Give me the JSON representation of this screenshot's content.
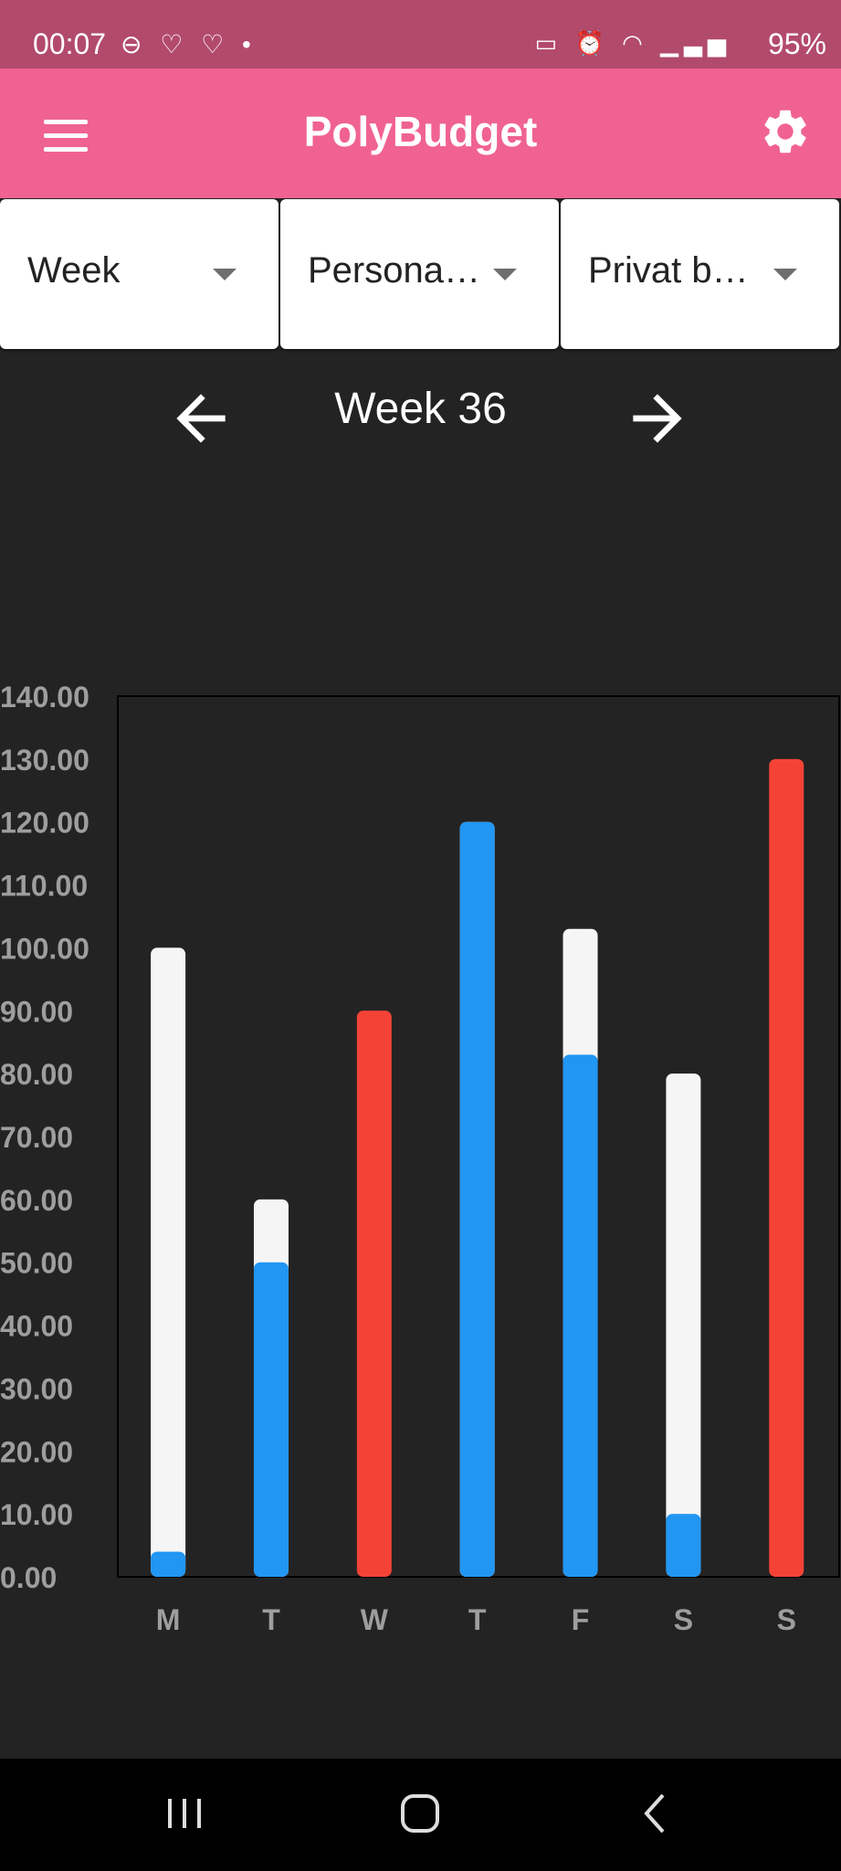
{
  "status_bar": {
    "time": "00:07",
    "left_icons": [
      "do-not-disturb-icon",
      "heart-icon",
      "heart-icon",
      "dot-icon"
    ],
    "right_icons": [
      "sleep-icon",
      "alarm-icon",
      "wifi-icon",
      "signal-icon",
      "signal-r-icon"
    ],
    "battery": "95%"
  },
  "app_bar": {
    "title": "PolyBudget",
    "menu_icon": "menu-icon",
    "settings_icon": "gear-icon"
  },
  "filters": [
    {
      "label": "Week"
    },
    {
      "label": "Persona…"
    },
    {
      "label": "Privat b…"
    }
  ],
  "week_nav": {
    "label": "Week 36",
    "prev_icon": "arrow-left-icon",
    "next_icon": "arrow-right-icon"
  },
  "colors": {
    "app_bar": "#f06292",
    "status_bar": "#b24a6c",
    "background": "#232323",
    "bar_blue": "#2196f3",
    "bar_red": "#f44336",
    "bar_total": "#f5f5f5",
    "axis_text": "#9e9e9e"
  },
  "chart_data": {
    "type": "bar",
    "categories": [
      "M",
      "T",
      "W",
      "T",
      "F",
      "S",
      "S"
    ],
    "totals": [
      100,
      60,
      90,
      120,
      103,
      80,
      130
    ],
    "spent": [
      4,
      50,
      90,
      120,
      83,
      10,
      130
    ],
    "over_budget": [
      false,
      false,
      true,
      false,
      false,
      false,
      true
    ],
    "ylim": [
      0,
      140
    ],
    "y_ticks": [
      "0.00",
      "10.00",
      "20.00",
      "30.00",
      "40.00",
      "50.00",
      "60.00",
      "70.00",
      "80.00",
      "90.00",
      "100.00",
      "110.00",
      "120.00",
      "130.00",
      "140.00"
    ]
  },
  "nav_bar": {
    "recent_icon": "recent-apps-icon",
    "home_icon": "home-icon",
    "back_icon": "back-icon"
  }
}
